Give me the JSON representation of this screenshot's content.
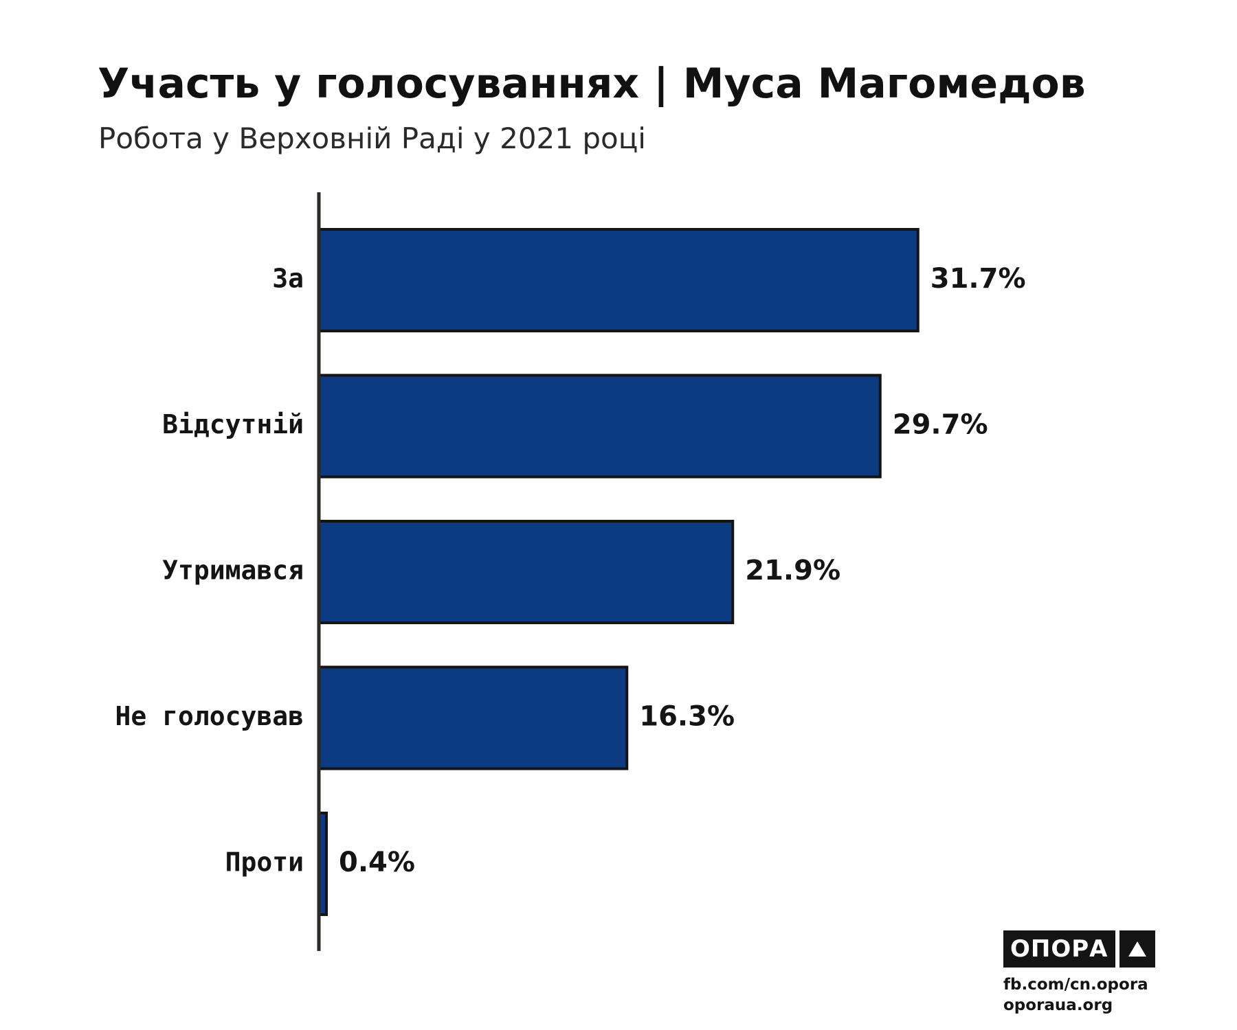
{
  "header": {
    "title": "Участь у голосуваннях | Муса Магомедов",
    "subtitle": "Робота у Верховній Раді у 2021 році"
  },
  "colors": {
    "bar_fill": "#0d3b82",
    "bar_stroke": "#141414",
    "axis": "#2b2a25",
    "text": "#141414"
  },
  "chart_data": {
    "type": "bar",
    "orientation": "horizontal",
    "title": "Участь у голосуваннях | Муса Магомедов",
    "subtitle": "Робота у Верховній Раді у 2021 році",
    "categories": [
      "За",
      "Відсутній",
      "Утримався",
      "Не голосував",
      "Проти"
    ],
    "values": [
      31.7,
      29.7,
      21.9,
      16.3,
      0.4
    ],
    "value_labels": [
      "31.7%",
      "29.7%",
      "21.9%",
      "16.3%",
      "0.4%"
    ],
    "unit": "%",
    "xlabel": "",
    "ylabel": "",
    "grid": false,
    "legend": "none"
  },
  "branding": {
    "logo_text": "ОПОРА",
    "logo_icon": "triangle-icon",
    "links": [
      "fb.com/cn.opora",
      "oporaua.org"
    ]
  }
}
